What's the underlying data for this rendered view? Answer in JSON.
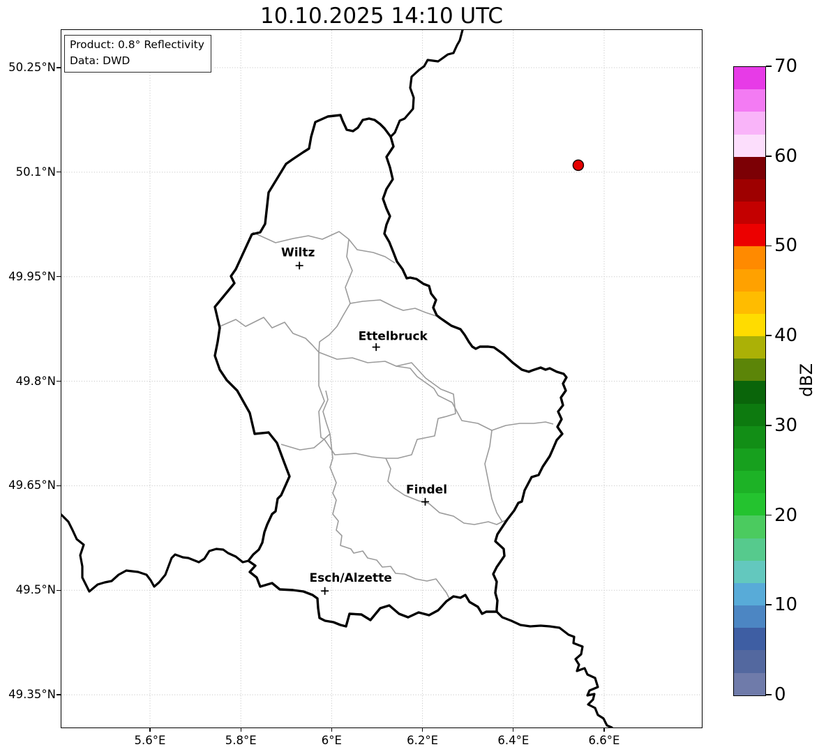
{
  "title": "10.10.2025 14:10 UTC",
  "info_box": {
    "line1": "Product: 0.8° Reflectivity",
    "line2": "Data: DWD"
  },
  "axes": {
    "lat_ticks": [
      {
        "label": "50.25°N",
        "value": 50.25
      },
      {
        "label": "50.1°N",
        "value": 50.1
      },
      {
        "label": "49.95°N",
        "value": 49.95
      },
      {
        "label": "49.8°N",
        "value": 49.8
      },
      {
        "label": "49.65°N",
        "value": 49.65
      },
      {
        "label": "49.5°N",
        "value": 49.5
      },
      {
        "label": "49.35°N",
        "value": 49.35
      }
    ],
    "lon_ticks": [
      {
        "label": "5.6°E",
        "value": 5.6
      },
      {
        "label": "5.8°E",
        "value": 5.8
      },
      {
        "label": "6°E",
        "value": 6.0
      },
      {
        "label": "6.2°E",
        "value": 6.2
      },
      {
        "label": "6.4°E",
        "value": 6.4
      },
      {
        "label": "6.6°E",
        "value": 6.6
      }
    ]
  },
  "cities": [
    {
      "name": "Wiltz",
      "lon": 5.929,
      "lat": 49.966,
      "label_offset": [
        -2,
        -19
      ]
    },
    {
      "name": "Ettelbruck",
      "lon": 6.098,
      "lat": 49.849,
      "label_offset": [
        24,
        -16
      ]
    },
    {
      "name": "Findel",
      "lon": 6.206,
      "lat": 49.627,
      "label_offset": [
        2,
        -18
      ]
    },
    {
      "name": "Esch/Alzette",
      "lon": 5.985,
      "lat": 49.499,
      "label_offset": [
        37,
        -19
      ]
    }
  ],
  "radar_site": {
    "lon": 6.543,
    "lat": 50.11,
    "fill": "#e60000",
    "edge": "#1a0000"
  },
  "colorbar": {
    "label": "dBZ",
    "min": 0,
    "max": 70,
    "step_dbz": 2.5,
    "tick_values": [
      0,
      10,
      20,
      30,
      40,
      50,
      60,
      70
    ],
    "segment_colors_bottom_to_top": [
      "#6F7BAA",
      "#53689F",
      "#3E5EA3",
      "#4C86C3",
      "#58ABD8",
      "#63C8BE",
      "#56CA8D",
      "#4BCB5F",
      "#24C32F",
      "#1DB226",
      "#17A01E",
      "#128E16",
      "#0D7A0F",
      "#0A650A",
      "#5C8508",
      "#ABB106",
      "#FFDC00",
      "#FFBC00",
      "#FFA100",
      "#FF8A00",
      "#EC0000",
      "#C40000",
      "#9E0000",
      "#7C0005",
      "#FCDEFC",
      "#F9B4F9",
      "#F37BF3",
      "#E73BE7"
    ]
  },
  "style_colors": {
    "country_border": "#000000",
    "canton_border": "#9b9b9b",
    "gridline": "#c8c8c8"
  }
}
